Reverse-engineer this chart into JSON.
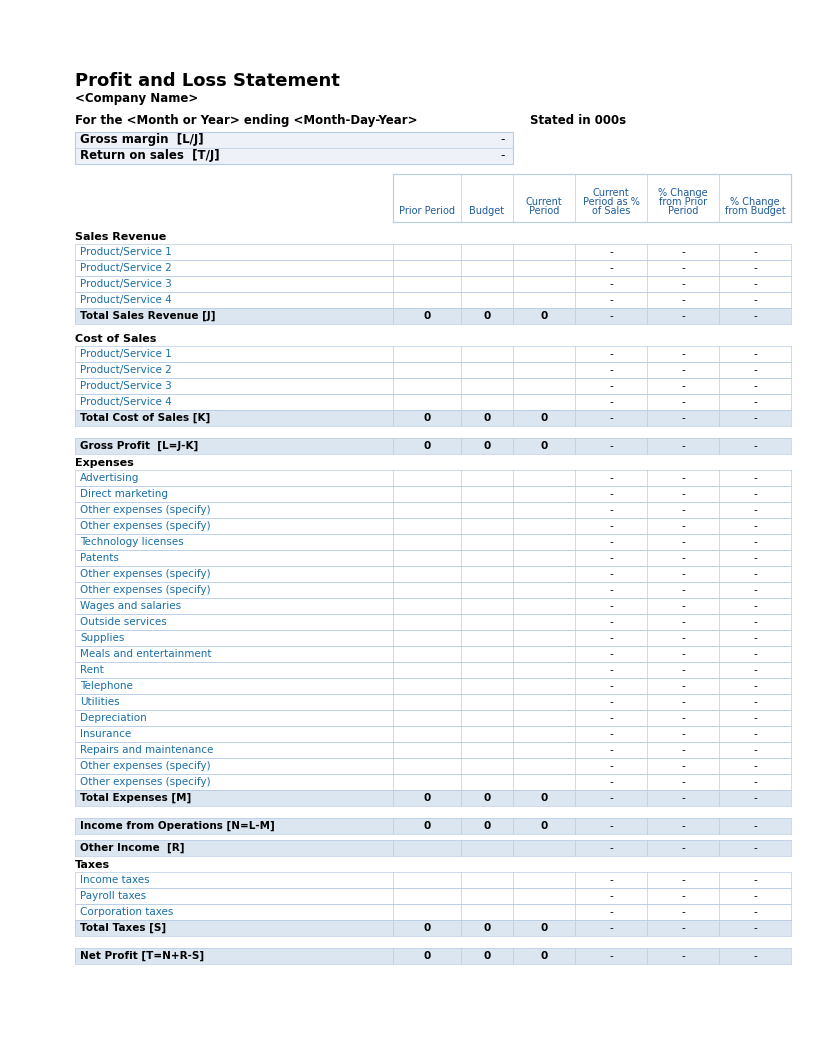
{
  "title": "Profit and Loss Statement",
  "subtitle": "<Company Name>",
  "period_line": "For the <Month or Year> ending <Month-Day-Year>",
  "stated": "Stated in 000s",
  "gross_margin_label": "Gross margin  [L/J]",
  "return_on_sales_label": "Return on sales  [T/J]",
  "dash": "-",
  "col_headers": [
    "Prior Period",
    "Budget",
    "Current\nPeriod",
    "Current\nPeriod as %\nof Sales",
    "% Change\nfrom Prior\nPeriod",
    "% Change\nfrom Budget"
  ],
  "col_header_color": "#1F5C99",
  "row_label_blue": "#1a6fa3",
  "bold_row_color": "#000000",
  "total_row_bg": "#dce6f1",
  "header_bg": "#ffffff",
  "normal_row_bg": "#ffffff",
  "summary_bg": "#e8eef7",
  "border_color": "#b8cce4",
  "sections": [
    {
      "section_title": "Sales Revenue",
      "rows": [
        {
          "label": "Product/Service 1",
          "bold": false,
          "is_total": false
        },
        {
          "label": "Product/Service 2",
          "bold": false,
          "is_total": false
        },
        {
          "label": "Product/Service 3",
          "bold": false,
          "is_total": false
        },
        {
          "label": "Product/Service 4",
          "bold": false,
          "is_total": false
        },
        {
          "label": "Total Sales Revenue [J]",
          "bold": true,
          "is_total": true
        }
      ]
    },
    {
      "section_title": "Cost of Sales",
      "rows": [
        {
          "label": "Product/Service 1",
          "bold": false,
          "is_total": false
        },
        {
          "label": "Product/Service 2",
          "bold": false,
          "is_total": false
        },
        {
          "label": "Product/Service 3",
          "bold": false,
          "is_total": false
        },
        {
          "label": "Product/Service 4",
          "bold": false,
          "is_total": false
        },
        {
          "label": "Total Cost of Sales [K]",
          "bold": true,
          "is_total": true
        }
      ]
    },
    {
      "section_title": null,
      "gap_before": true,
      "rows": [
        {
          "label": "Gross Profit  [L=J-K]",
          "bold": true,
          "is_total": true,
          "special_bg": true
        }
      ]
    },
    {
      "section_title": "Expenses",
      "rows": [
        {
          "label": "Advertising",
          "bold": false,
          "is_total": false
        },
        {
          "label": "Direct marketing",
          "bold": false,
          "is_total": false
        },
        {
          "label": "Other expenses (specify)",
          "bold": false,
          "is_total": false
        },
        {
          "label": "Other expenses (specify)",
          "bold": false,
          "is_total": false
        },
        {
          "label": "Technology licenses",
          "bold": false,
          "is_total": false
        },
        {
          "label": "Patents",
          "bold": false,
          "is_total": false
        },
        {
          "label": "Other expenses (specify)",
          "bold": false,
          "is_total": false
        },
        {
          "label": "Other expenses (specify)",
          "bold": false,
          "is_total": false
        },
        {
          "label": "Wages and salaries",
          "bold": false,
          "is_total": false
        },
        {
          "label": "Outside services",
          "bold": false,
          "is_total": false
        },
        {
          "label": "Supplies",
          "bold": false,
          "is_total": false
        },
        {
          "label": "Meals and entertainment",
          "bold": false,
          "is_total": false
        },
        {
          "label": "Rent",
          "bold": false,
          "is_total": false
        },
        {
          "label": "Telephone",
          "bold": false,
          "is_total": false
        },
        {
          "label": "Utilities",
          "bold": false,
          "is_total": false
        },
        {
          "label": "Depreciation",
          "bold": false,
          "is_total": false
        },
        {
          "label": "Insurance",
          "bold": false,
          "is_total": false
        },
        {
          "label": "Repairs and maintenance",
          "bold": false,
          "is_total": false
        },
        {
          "label": "Other expenses (specify)",
          "bold": false,
          "is_total": false
        },
        {
          "label": "Other expenses (specify)",
          "bold": false,
          "is_total": false
        },
        {
          "label": "Total Expenses [M]",
          "bold": true,
          "is_total": true
        }
      ]
    },
    {
      "section_title": null,
      "gap_before": true,
      "rows": [
        {
          "label": "Income from Operations [N=L-M]",
          "bold": true,
          "is_total": true,
          "special_bg": true
        }
      ]
    },
    {
      "section_title": null,
      "gap_before": true,
      "rows": [
        {
          "label": "Other Income  [R]",
          "bold": true,
          "is_total": false,
          "special_bg": true,
          "no_nums": true
        }
      ]
    },
    {
      "section_title": "Taxes",
      "rows": [
        {
          "label": "Income taxes",
          "bold": false,
          "is_total": false
        },
        {
          "label": "Payroll taxes",
          "bold": false,
          "is_total": false
        },
        {
          "label": "Corporation taxes",
          "bold": false,
          "is_total": false
        },
        {
          "label": "Total Taxes [S]",
          "bold": true,
          "is_total": true
        }
      ]
    },
    {
      "section_title": null,
      "gap_before": true,
      "rows": [
        {
          "label": "Net Profit [T=N+R-S]",
          "bold": true,
          "is_total": true,
          "special_bg": true
        }
      ]
    }
  ]
}
